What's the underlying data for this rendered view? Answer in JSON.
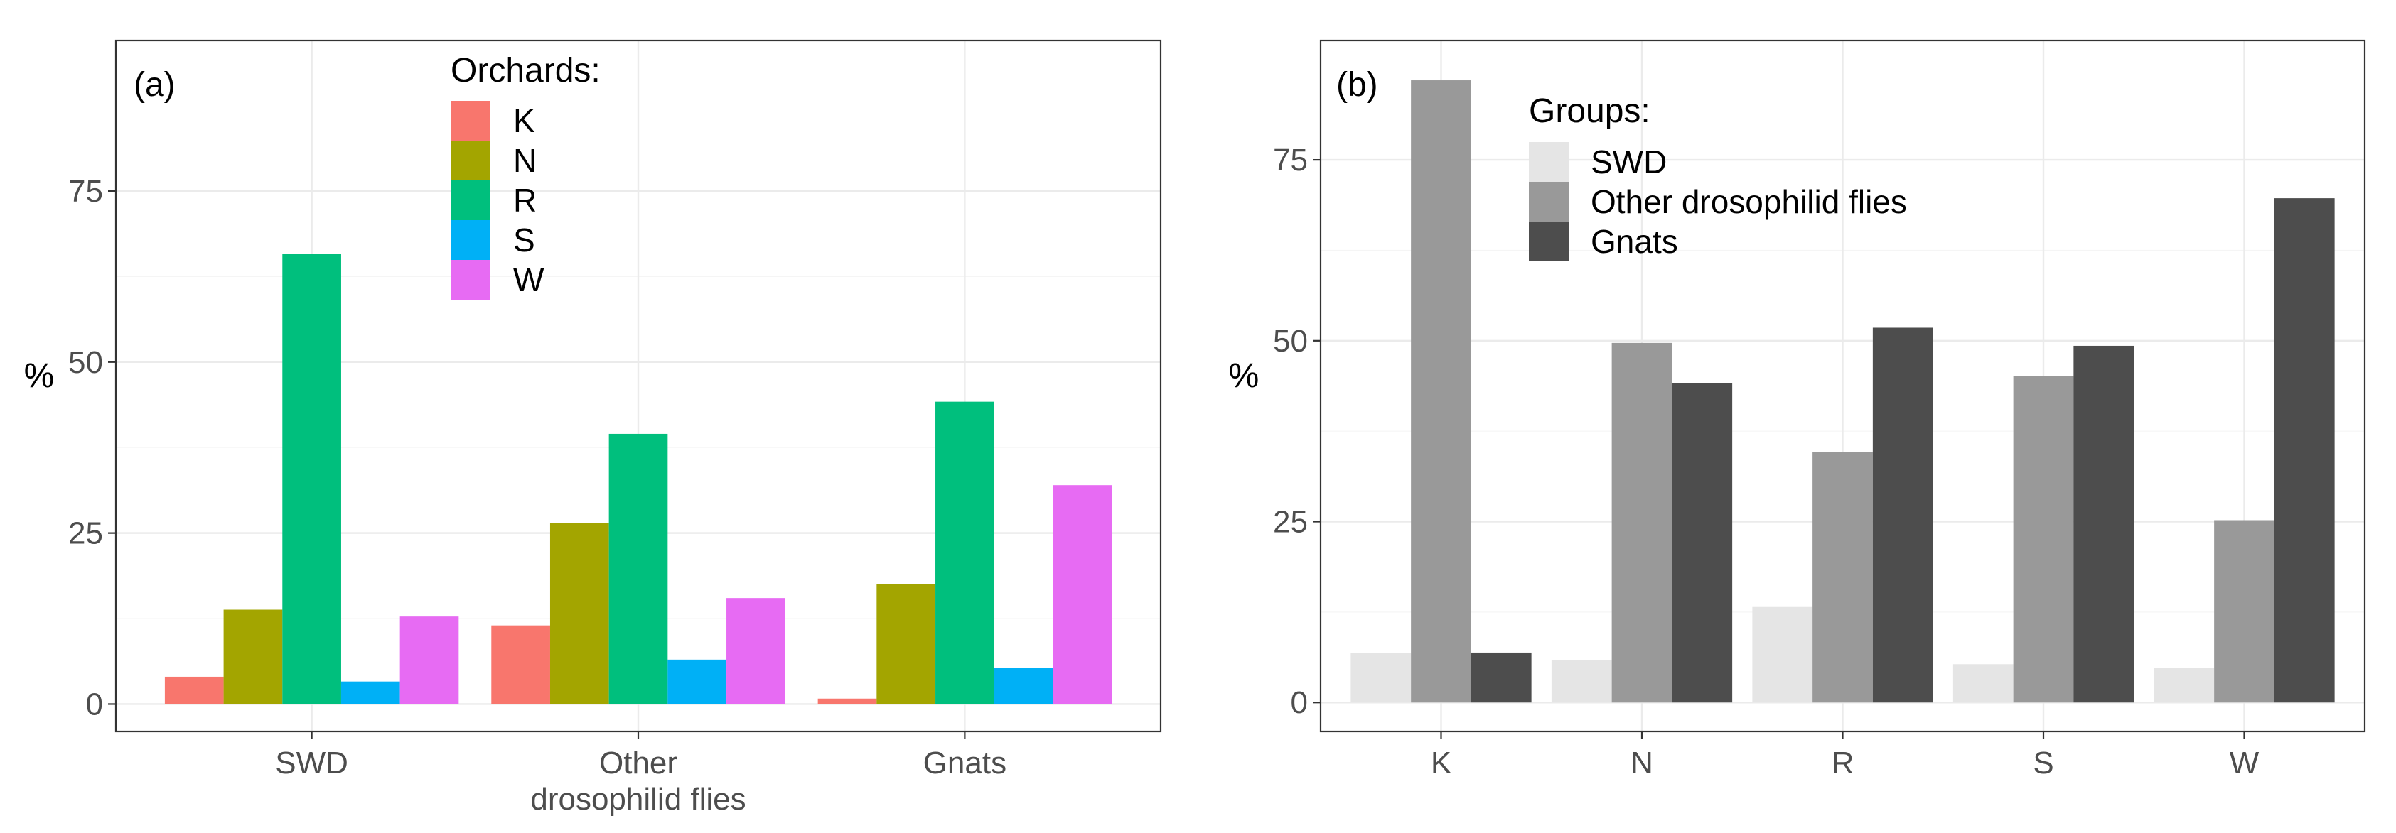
{
  "chart_data": [
    {
      "type": "bar",
      "panel_label": "(a)",
      "ylabel": "%",
      "xlabel": "",
      "ylim": [
        -4,
        97
      ],
      "yticks": [
        0,
        25,
        50,
        75
      ],
      "grid": true,
      "categories": [
        "SWD",
        "Other\ndrosophilid flies",
        "Gnats"
      ],
      "legend": {
        "title": "Orchards:",
        "position": "top-center"
      },
      "series": [
        {
          "name": "K",
          "color": "#F8766D",
          "values": [
            4.0,
            11.5,
            0.8
          ]
        },
        {
          "name": "N",
          "color": "#A3A500",
          "values": [
            13.8,
            26.5,
            17.5
          ]
        },
        {
          "name": "R",
          "color": "#00BF7D",
          "values": [
            65.8,
            39.5,
            44.2
          ]
        },
        {
          "name": "S",
          "color": "#00B0F6",
          "values": [
            3.3,
            6.5,
            5.3
          ]
        },
        {
          "name": "W",
          "color": "#E76BF3",
          "values": [
            12.8,
            15.5,
            32.0
          ]
        }
      ]
    },
    {
      "type": "bar",
      "panel_label": "(b)",
      "ylabel": "%",
      "xlabel": "",
      "ylim": [
        -4,
        91.5
      ],
      "yticks": [
        0,
        25,
        50,
        75
      ],
      "grid": true,
      "categories": [
        "K",
        "N",
        "R",
        "S",
        "W"
      ],
      "legend": {
        "title": "Groups:",
        "position": "top-left"
      },
      "series": [
        {
          "name": "SWD",
          "color": "#E5E5E5",
          "values": [
            6.8,
            5.9,
            13.2,
            5.3,
            4.8
          ]
        },
        {
          "name": "Other drosophilid flies",
          "color": "#999999",
          "values": [
            86.0,
            49.7,
            34.6,
            45.1,
            25.2
          ]
        },
        {
          "name": "Gnats",
          "color": "#4D4D4D",
          "values": [
            6.9,
            44.1,
            51.8,
            49.3,
            69.7
          ]
        }
      ]
    }
  ]
}
